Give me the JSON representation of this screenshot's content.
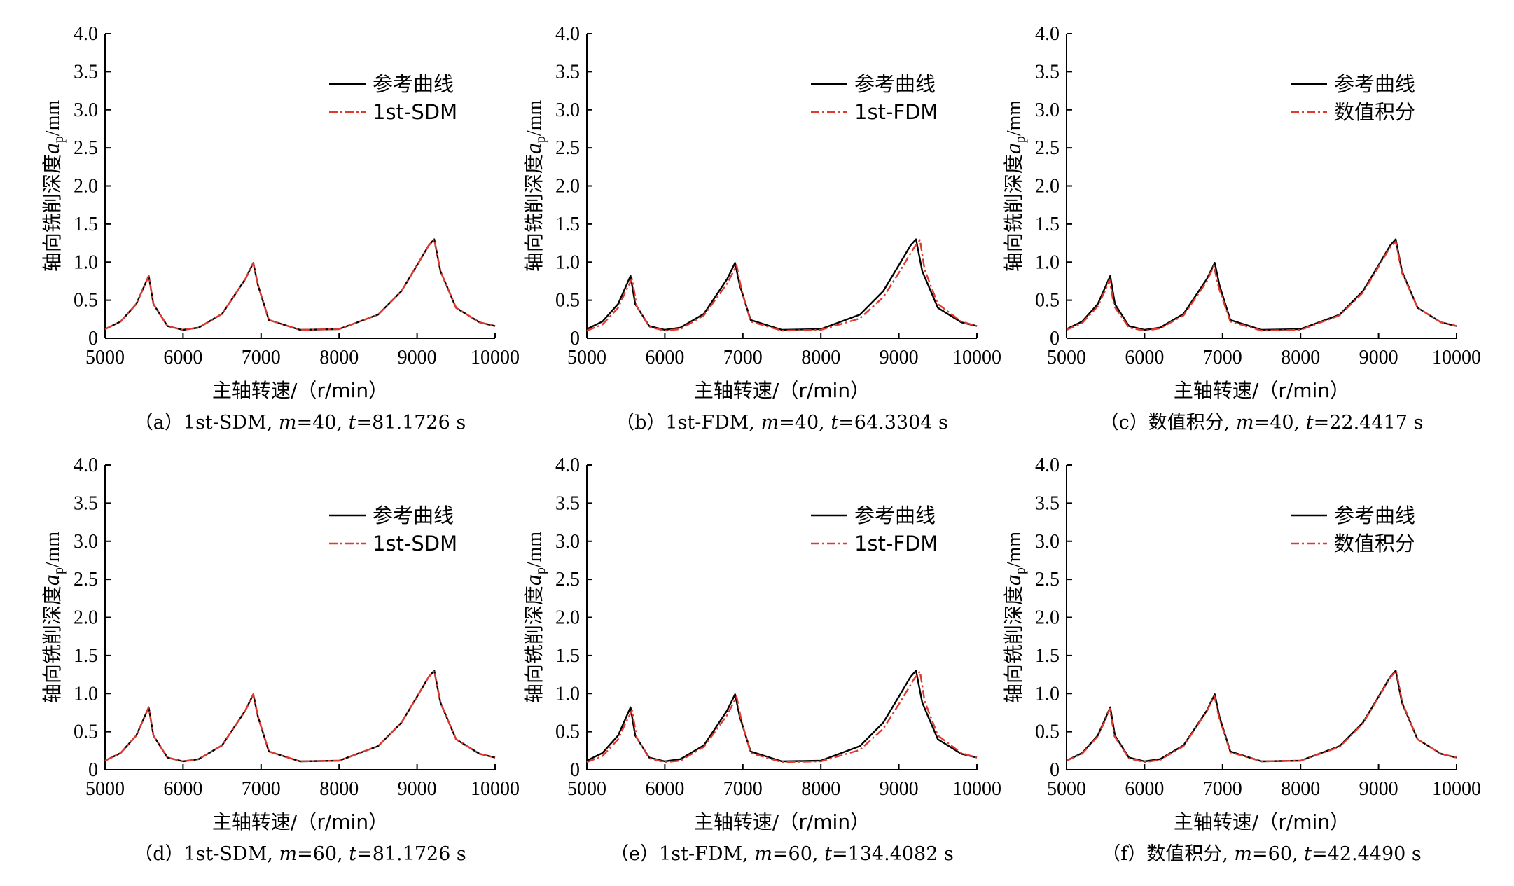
{
  "colors": {
    "reference": "#000000",
    "method": "#e03a2e"
  },
  "chart_data": [
    {
      "type": "line",
      "xlabel": "主轴转速/（r/min）",
      "ylabel_prefix": "轴向铣削深度",
      "ylabel_symbol": "a",
      "ylabel_sub": "p",
      "ylabel_unit": "/mm",
      "xlim": [
        5000,
        10000
      ],
      "ylim": [
        0,
        4.0
      ],
      "xticks": [
        "5000",
        "6000",
        "7000",
        "8000",
        "9000",
        "10000"
      ],
      "yticks": [
        "0",
        "0.5",
        "1.0",
        "1.5",
        "2.0",
        "2.5",
        "3.0",
        "3.5",
        "4.0"
      ],
      "legend_position": "top-right",
      "caption": {
        "prefix": "（a）1st-SDM, ",
        "m_var": "m",
        "m_val": "=40, ",
        "t_var": "t",
        "t_val": "=81.1726 s"
      },
      "series": [
        {
          "name": "参考曲线",
          "style": "solid",
          "x": [
            5000,
            5200,
            5400,
            5500,
            5560,
            5620,
            5800,
            6000,
            6200,
            6500,
            6800,
            6900,
            6960,
            7100,
            7500,
            8000,
            8500,
            8800,
            9000,
            9150,
            9220,
            9300,
            9500,
            9800,
            10000
          ],
          "y": [
            0.12,
            0.22,
            0.45,
            0.68,
            0.82,
            0.45,
            0.16,
            0.11,
            0.14,
            0.32,
            0.78,
            0.99,
            0.7,
            0.24,
            0.11,
            0.12,
            0.31,
            0.62,
            0.96,
            1.22,
            1.3,
            0.88,
            0.4,
            0.21,
            0.16
          ]
        },
        {
          "name": "1st-SDM",
          "style": "dashdot",
          "x": [
            5000,
            5200,
            5400,
            5500,
            5560,
            5620,
            5800,
            6000,
            6200,
            6500,
            6800,
            6900,
            6960,
            7100,
            7500,
            8000,
            8500,
            8800,
            9000,
            9150,
            9220,
            9300,
            9500,
            9800,
            10000
          ],
          "y": [
            0.12,
            0.22,
            0.45,
            0.68,
            0.82,
            0.45,
            0.16,
            0.11,
            0.14,
            0.32,
            0.78,
            0.99,
            0.7,
            0.24,
            0.11,
            0.12,
            0.31,
            0.62,
            0.96,
            1.22,
            1.3,
            0.88,
            0.4,
            0.21,
            0.16
          ]
        }
      ]
    },
    {
      "type": "line",
      "xlabel": "主轴转速/（r/min）",
      "ylabel_prefix": "轴向铣削深度",
      "ylabel_symbol": "a",
      "ylabel_sub": "p",
      "ylabel_unit": "/mm",
      "xlim": [
        5000,
        10000
      ],
      "ylim": [
        0,
        4.0
      ],
      "xticks": [
        "5000",
        "6000",
        "7000",
        "8000",
        "9000",
        "10000"
      ],
      "yticks": [
        "0",
        "0.5",
        "1.0",
        "1.5",
        "2.0",
        "2.5",
        "3.0",
        "3.5",
        "4.0"
      ],
      "legend_position": "top-right",
      "caption": {
        "prefix": "（b）1st-FDM, ",
        "m_var": "m",
        "m_val": "=40, ",
        "t_var": "t",
        "t_val": "=64.3304 s"
      },
      "series": [
        {
          "name": "参考曲线",
          "style": "solid",
          "x": [
            5000,
            5200,
            5400,
            5500,
            5560,
            5620,
            5800,
            6000,
            6200,
            6500,
            6800,
            6900,
            6960,
            7100,
            7500,
            8000,
            8500,
            8800,
            9000,
            9150,
            9220,
            9300,
            9500,
            9800,
            10000
          ],
          "y": [
            0.12,
            0.22,
            0.45,
            0.68,
            0.82,
            0.45,
            0.16,
            0.11,
            0.14,
            0.32,
            0.78,
            0.99,
            0.7,
            0.24,
            0.11,
            0.12,
            0.31,
            0.62,
            0.96,
            1.22,
            1.3,
            0.88,
            0.4,
            0.21,
            0.16
          ]
        },
        {
          "name": "1st-FDM",
          "style": "dashdot",
          "x": [
            5000,
            5200,
            5400,
            5500,
            5580,
            5640,
            5800,
            6000,
            6200,
            6500,
            6800,
            6920,
            6980,
            7100,
            7500,
            8000,
            8500,
            8800,
            9000,
            9200,
            9270,
            9330,
            9500,
            9800,
            10000
          ],
          "y": [
            0.1,
            0.18,
            0.4,
            0.62,
            0.78,
            0.42,
            0.15,
            0.1,
            0.12,
            0.3,
            0.72,
            0.96,
            0.65,
            0.22,
            0.1,
            0.11,
            0.26,
            0.54,
            0.86,
            1.2,
            1.29,
            0.9,
            0.45,
            0.22,
            0.16
          ]
        }
      ]
    },
    {
      "type": "line",
      "xlabel": "主轴转速/（r/min）",
      "ylabel_prefix": "轴向铣削深度",
      "ylabel_symbol": "a",
      "ylabel_sub": "p",
      "ylabel_unit": "/mm",
      "xlim": [
        5000,
        10000
      ],
      "ylim": [
        0,
        4.0
      ],
      "xticks": [
        "5000",
        "6000",
        "7000",
        "8000",
        "9000",
        "10000"
      ],
      "yticks": [
        "0",
        "0.5",
        "1.0",
        "1.5",
        "2.0",
        "2.5",
        "3.0",
        "3.5",
        "4.0"
      ],
      "legend_position": "top-right",
      "caption": {
        "prefix": "（c）数值积分, ",
        "m_var": "m",
        "m_val": "=40, ",
        "t_var": "t",
        "t_val": "=22.4417 s"
      },
      "series": [
        {
          "name": "参考曲线",
          "style": "solid",
          "x": [
            5000,
            5200,
            5400,
            5500,
            5560,
            5620,
            5800,
            6000,
            6200,
            6500,
            6800,
            6900,
            6960,
            7100,
            7500,
            8000,
            8500,
            8800,
            9000,
            9150,
            9220,
            9300,
            9500,
            9800,
            10000
          ],
          "y": [
            0.12,
            0.22,
            0.45,
            0.68,
            0.82,
            0.45,
            0.16,
            0.11,
            0.14,
            0.32,
            0.78,
            0.99,
            0.7,
            0.24,
            0.11,
            0.12,
            0.31,
            0.62,
            0.96,
            1.22,
            1.3,
            0.88,
            0.4,
            0.21,
            0.16
          ]
        },
        {
          "name": "数值积分",
          "style": "dashdot",
          "x": [
            5000,
            5200,
            5400,
            5500,
            5550,
            5610,
            5800,
            6000,
            6200,
            6500,
            6800,
            6890,
            6950,
            7100,
            7500,
            8000,
            8500,
            8800,
            9000,
            9150,
            9220,
            9300,
            9500,
            9800,
            10000
          ],
          "y": [
            0.11,
            0.2,
            0.42,
            0.64,
            0.77,
            0.42,
            0.14,
            0.1,
            0.13,
            0.3,
            0.75,
            0.95,
            0.67,
            0.22,
            0.1,
            0.11,
            0.3,
            0.6,
            0.94,
            1.2,
            1.27,
            0.86,
            0.4,
            0.21,
            0.16
          ]
        }
      ]
    },
    {
      "type": "line",
      "xlabel": "主轴转速/（r/min）",
      "ylabel_prefix": "轴向铣削深度",
      "ylabel_symbol": "a",
      "ylabel_sub": "p",
      "ylabel_unit": "/mm",
      "xlim": [
        5000,
        10000
      ],
      "ylim": [
        0,
        4.0
      ],
      "xticks": [
        "5000",
        "6000",
        "7000",
        "8000",
        "9000",
        "10000"
      ],
      "yticks": [
        "0",
        "0.5",
        "1.0",
        "1.5",
        "2.0",
        "2.5",
        "3.0",
        "3.5",
        "4.0"
      ],
      "legend_position": "top-right",
      "caption": {
        "prefix": "（d）1st-SDM, ",
        "m_var": "m",
        "m_val": "=60, ",
        "t_var": "t",
        "t_val": "=81.1726 s"
      },
      "series": [
        {
          "name": "参考曲线",
          "style": "solid",
          "x": [
            5000,
            5200,
            5400,
            5500,
            5560,
            5620,
            5800,
            6000,
            6200,
            6500,
            6800,
            6900,
            6960,
            7100,
            7500,
            8000,
            8500,
            8800,
            9000,
            9150,
            9220,
            9300,
            9500,
            9800,
            10000
          ],
          "y": [
            0.12,
            0.22,
            0.45,
            0.68,
            0.82,
            0.45,
            0.16,
            0.11,
            0.14,
            0.32,
            0.78,
            0.99,
            0.7,
            0.24,
            0.11,
            0.12,
            0.31,
            0.62,
            0.96,
            1.22,
            1.3,
            0.88,
            0.4,
            0.21,
            0.16
          ]
        },
        {
          "name": "1st-SDM",
          "style": "dashdot",
          "x": [
            5000,
            5200,
            5400,
            5500,
            5560,
            5620,
            5800,
            6000,
            6200,
            6500,
            6800,
            6900,
            6960,
            7100,
            7500,
            8000,
            8500,
            8800,
            9000,
            9150,
            9220,
            9300,
            9500,
            9800,
            10000
          ],
          "y": [
            0.12,
            0.22,
            0.45,
            0.68,
            0.82,
            0.45,
            0.16,
            0.11,
            0.14,
            0.32,
            0.78,
            0.99,
            0.7,
            0.24,
            0.11,
            0.12,
            0.31,
            0.62,
            0.96,
            1.22,
            1.3,
            0.88,
            0.4,
            0.21,
            0.16
          ]
        }
      ]
    },
    {
      "type": "line",
      "xlabel": "主轴转速/（r/min）",
      "ylabel_prefix": "轴向铣削深度",
      "ylabel_symbol": "a",
      "ylabel_sub": "p",
      "ylabel_unit": "/mm",
      "xlim": [
        5000,
        10000
      ],
      "ylim": [
        0,
        4.0
      ],
      "xticks": [
        "5000",
        "6000",
        "7000",
        "8000",
        "9000",
        "10000"
      ],
      "yticks": [
        "0",
        "0.5",
        "1.0",
        "1.5",
        "2.0",
        "2.5",
        "3.0",
        "3.5",
        "4.0"
      ],
      "legend_position": "top-right",
      "caption": {
        "prefix": "（e）1st-FDM, ",
        "m_var": "m",
        "m_val": "=60, ",
        "t_var": "t",
        "t_val": "=134.4082 s"
      },
      "series": [
        {
          "name": "参考曲线",
          "style": "solid",
          "x": [
            5000,
            5200,
            5400,
            5500,
            5560,
            5620,
            5800,
            6000,
            6200,
            6500,
            6800,
            6900,
            6960,
            7100,
            7500,
            8000,
            8500,
            8800,
            9000,
            9150,
            9220,
            9300,
            9500,
            9800,
            10000
          ],
          "y": [
            0.12,
            0.22,
            0.45,
            0.68,
            0.82,
            0.45,
            0.16,
            0.11,
            0.14,
            0.32,
            0.78,
            0.99,
            0.7,
            0.24,
            0.11,
            0.12,
            0.31,
            0.62,
            0.96,
            1.22,
            1.3,
            0.88,
            0.4,
            0.21,
            0.16
          ]
        },
        {
          "name": "1st-FDM",
          "style": "dashdot",
          "x": [
            5000,
            5200,
            5400,
            5500,
            5580,
            5640,
            5800,
            6000,
            6200,
            6500,
            6800,
            6920,
            6980,
            7100,
            7500,
            8000,
            8500,
            8800,
            9000,
            9200,
            9270,
            9330,
            9500,
            9800,
            10000
          ],
          "y": [
            0.1,
            0.18,
            0.4,
            0.62,
            0.78,
            0.42,
            0.15,
            0.1,
            0.12,
            0.3,
            0.72,
            0.96,
            0.65,
            0.22,
            0.1,
            0.11,
            0.26,
            0.54,
            0.86,
            1.2,
            1.29,
            0.9,
            0.45,
            0.22,
            0.16
          ]
        }
      ]
    },
    {
      "type": "line",
      "xlabel": "主轴转速/（r/min）",
      "ylabel_prefix": "轴向铣削深度",
      "ylabel_symbol": "a",
      "ylabel_sub": "p",
      "ylabel_unit": "/mm",
      "xlim": [
        5000,
        10000
      ],
      "ylim": [
        0,
        4.0
      ],
      "xticks": [
        "5000",
        "6000",
        "7000",
        "8000",
        "9000",
        "10000"
      ],
      "yticks": [
        "0",
        "0.5",
        "1.0",
        "1.5",
        "2.0",
        "2.5",
        "3.0",
        "3.5",
        "4.0"
      ],
      "legend_position": "top-right",
      "caption": {
        "prefix": "（f）数值积分, ",
        "m_var": "m",
        "m_val": "=60, ",
        "t_var": "t",
        "t_val": "=42.4490 s"
      },
      "series": [
        {
          "name": "参考曲线",
          "style": "solid",
          "x": [
            5000,
            5200,
            5400,
            5500,
            5560,
            5620,
            5800,
            6000,
            6200,
            6500,
            6800,
            6900,
            6960,
            7100,
            7500,
            8000,
            8500,
            8800,
            9000,
            9150,
            9220,
            9300,
            9500,
            9800,
            10000
          ],
          "y": [
            0.12,
            0.22,
            0.45,
            0.68,
            0.82,
            0.45,
            0.16,
            0.11,
            0.14,
            0.32,
            0.78,
            0.99,
            0.7,
            0.24,
            0.11,
            0.12,
            0.31,
            0.62,
            0.96,
            1.22,
            1.3,
            0.88,
            0.4,
            0.21,
            0.16
          ]
        },
        {
          "name": "数值积分",
          "style": "dashdot",
          "x": [
            5000,
            5200,
            5400,
            5500,
            5555,
            5615,
            5800,
            6000,
            6200,
            6500,
            6800,
            6895,
            6955,
            7100,
            7500,
            8000,
            8500,
            8800,
            9000,
            9150,
            9225,
            9305,
            9500,
            9800,
            10000
          ],
          "y": [
            0.12,
            0.21,
            0.44,
            0.66,
            0.8,
            0.44,
            0.15,
            0.1,
            0.13,
            0.31,
            0.77,
            0.97,
            0.69,
            0.23,
            0.11,
            0.12,
            0.3,
            0.61,
            0.95,
            1.21,
            1.3,
            0.88,
            0.4,
            0.21,
            0.16
          ]
        }
      ]
    }
  ]
}
